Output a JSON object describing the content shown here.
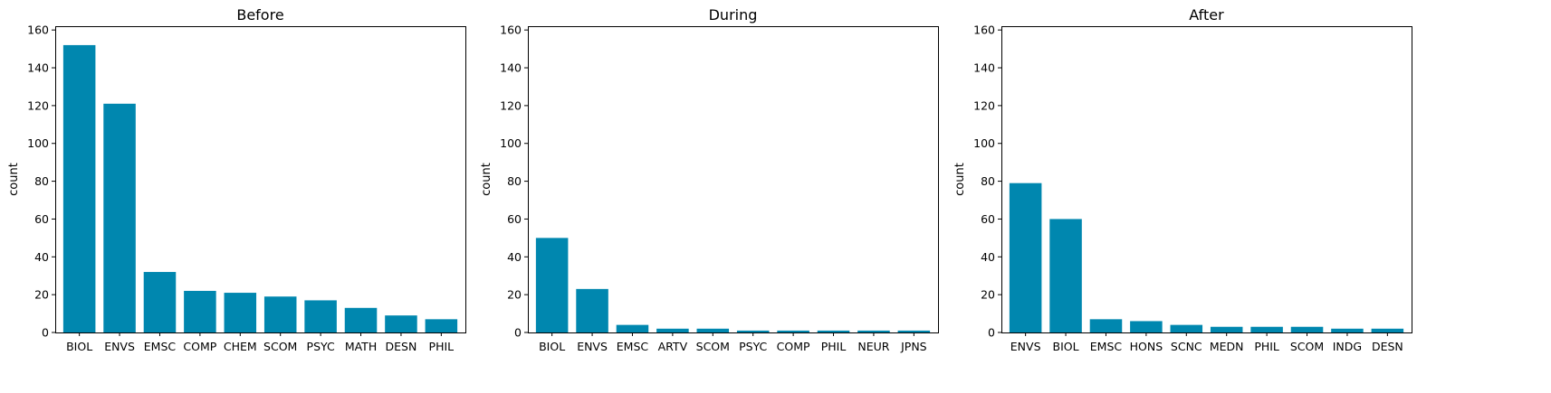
{
  "colors": {
    "bar": "#0087AF"
  },
  "chart_data": [
    {
      "type": "bar",
      "title": "Before",
      "ylabel": "count",
      "xlabel": "",
      "ylim": [
        0,
        162
      ],
      "yticks": [
        0,
        20,
        40,
        60,
        80,
        100,
        120,
        140,
        160
      ],
      "categories": [
        "BIOL",
        "ENVS",
        "EMSC",
        "COMP",
        "CHEM",
        "SCOM",
        "PSYC",
        "MATH",
        "DESN",
        "PHIL"
      ],
      "values": [
        152,
        121,
        32,
        22,
        21,
        19,
        17,
        13,
        9,
        7
      ]
    },
    {
      "type": "bar",
      "title": "During",
      "ylabel": "count",
      "xlabel": "",
      "ylim": [
        0,
        162
      ],
      "yticks": [
        0,
        20,
        40,
        60,
        80,
        100,
        120,
        140,
        160
      ],
      "categories": [
        "BIOL",
        "ENVS",
        "EMSC",
        "ARTV",
        "SCOM",
        "PSYC",
        "COMP",
        "PHIL",
        "NEUR",
        "JPNS"
      ],
      "values": [
        50,
        23,
        4,
        2,
        2,
        1,
        1,
        1,
        1,
        1
      ]
    },
    {
      "type": "bar",
      "title": "After",
      "ylabel": "count",
      "xlabel": "",
      "ylim": [
        0,
        162
      ],
      "yticks": [
        0,
        20,
        40,
        60,
        80,
        100,
        120,
        140,
        160
      ],
      "categories": [
        "ENVS",
        "BIOL",
        "EMSC",
        "HONS",
        "SCNC",
        "MEDN",
        "PHIL",
        "SCOM",
        "INDG",
        "DESN"
      ],
      "values": [
        79,
        60,
        7,
        6,
        4,
        3,
        3,
        3,
        2,
        2
      ]
    }
  ]
}
